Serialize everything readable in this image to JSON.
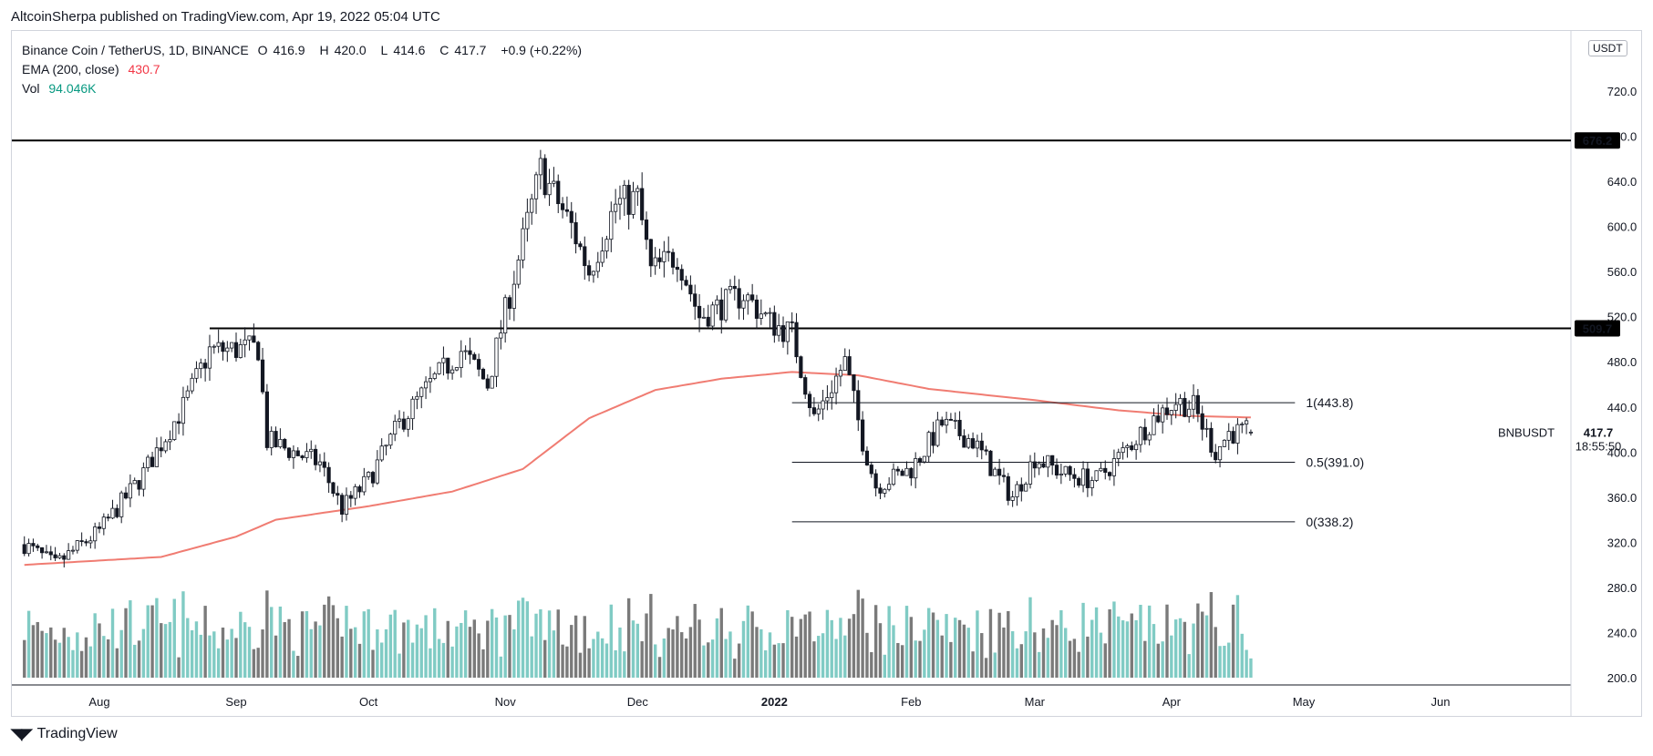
{
  "header": {
    "publisher": "AltcoinSherpa published on TradingView.com, Apr 19, 2022 05:04 UTC"
  },
  "legend": {
    "symbol": "Binance Coin / TetherUS, 1D, BINANCE",
    "o_label": "O",
    "o_value": "416.9",
    "h_label": "H",
    "h_value": "420.0",
    "l_label": "L",
    "l_value": "414.6",
    "c_label": "C",
    "c_value": "417.7",
    "change": "+0.9 (+0.22%)",
    "ema_label": "EMA (200, close)",
    "ema_value": "430.7",
    "vol_label": "Vol",
    "vol_value": "94.046K"
  },
  "footer": {
    "brand": "TradingView"
  },
  "colors": {
    "up": "#26a69a",
    "down": "#131722",
    "vol_up": "#80cbc4",
    "vol_down": "#7a7a7a",
    "ema": "#f07c72",
    "grid": "#e0e3eb"
  },
  "chart_data": {
    "type": "candlestick",
    "symbol": "BNBUSDT",
    "currency": "USDT",
    "y_ticks": [
      "720.0",
      "680.0",
      "640.0",
      "600.0",
      "560.0",
      "520.0",
      "480.0",
      "440.0",
      "400.0",
      "360.0",
      "320.0",
      "280.0",
      "240.0",
      "200.0"
    ],
    "y_tick_values": [
      720,
      680,
      640,
      600,
      560,
      520,
      480,
      440,
      400,
      360,
      320,
      280,
      240,
      200
    ],
    "x_ticks": [
      "Aug",
      "Sep",
      "Oct",
      "Nov",
      "Dec",
      "2022",
      "Feb",
      "Mar",
      "Apr",
      "May",
      "Jun"
    ],
    "x_tick_dates": [
      "2021-08-01",
      "2021-09-01",
      "2021-10-01",
      "2021-11-01",
      "2021-12-01",
      "2022-01-01",
      "2022-02-01",
      "2022-03-01",
      "2022-04-01",
      "2022-05-01",
      "2022-06-01"
    ],
    "ylim": [
      192,
      730
    ],
    "xlim": [
      "2021-07-15",
      "2022-06-30"
    ],
    "horizontal_levels": [
      {
        "label": "676.2",
        "value": 676.2
      },
      {
        "label": "509.7",
        "value": 509.7
      }
    ],
    "fib_levels": [
      {
        "label": "1(443.8)",
        "value": 443.8
      },
      {
        "label": "0.5(391.0)",
        "value": 391.0
      },
      {
        "label": "0(338.2)",
        "value": 338.2
      }
    ],
    "last_price": {
      "label": "BNBUSDT",
      "value": "417.7",
      "countdown": "18:55:50"
    },
    "price_waypoints": [
      [
        "2021-07-15",
        318
      ],
      [
        "2021-07-22",
        300
      ],
      [
        "2021-08-01",
        330
      ],
      [
        "2021-08-10",
        375
      ],
      [
        "2021-08-20",
        440
      ],
      [
        "2021-08-26",
        490
      ],
      [
        "2021-09-06",
        492
      ],
      [
        "2021-09-08",
        410
      ],
      [
        "2021-09-20",
        390
      ],
      [
        "2021-09-25",
        350
      ],
      [
        "2021-10-01",
        375
      ],
      [
        "2021-10-08",
        425
      ],
      [
        "2021-10-15",
        460
      ],
      [
        "2021-10-22",
        490
      ],
      [
        "2021-10-28",
        460
      ],
      [
        "2021-11-02",
        540
      ],
      [
        "2021-11-09",
        650
      ],
      [
        "2021-11-16",
        600
      ],
      [
        "2021-11-20",
        560
      ],
      [
        "2021-11-26",
        620
      ],
      [
        "2021-12-01",
        625
      ],
      [
        "2021-12-04",
        560
      ],
      [
        "2021-12-10",
        575
      ],
      [
        "2021-12-15",
        520
      ],
      [
        "2021-12-25",
        540
      ],
      [
        "2021-12-31",
        515
      ],
      [
        "2022-01-05",
        505
      ],
      [
        "2022-01-10",
        430
      ],
      [
        "2022-01-17",
        480
      ],
      [
        "2022-01-21",
        410
      ],
      [
        "2022-01-24",
        370
      ],
      [
        "2022-02-01",
        385
      ],
      [
        "2022-02-08",
        425
      ],
      [
        "2022-02-15",
        410
      ],
      [
        "2022-02-22",
        370
      ],
      [
        "2022-02-24",
        360
      ],
      [
        "2022-03-01",
        395
      ],
      [
        "2022-03-08",
        380
      ],
      [
        "2022-03-15",
        375
      ],
      [
        "2022-03-20",
        395
      ],
      [
        "2022-03-28",
        430
      ],
      [
        "2022-04-02",
        445
      ],
      [
        "2022-04-06",
        440
      ],
      [
        "2022-04-11",
        400
      ],
      [
        "2022-04-14",
        417
      ],
      [
        "2022-04-19",
        417.7
      ]
    ],
    "ema_waypoints": [
      [
        "2021-07-15",
        300
      ],
      [
        "2021-08-15",
        307
      ],
      [
        "2021-09-01",
        325
      ],
      [
        "2021-09-10",
        340
      ],
      [
        "2021-10-01",
        352
      ],
      [
        "2021-10-20",
        365
      ],
      [
        "2021-11-05",
        385
      ],
      [
        "2021-11-20",
        430
      ],
      [
        "2021-12-05",
        455
      ],
      [
        "2021-12-20",
        465
      ],
      [
        "2022-01-05",
        471
      ],
      [
        "2022-01-20",
        468
      ],
      [
        "2022-02-05",
        456
      ],
      [
        "2022-03-01",
        446
      ],
      [
        "2022-03-20",
        437
      ],
      [
        "2022-04-05",
        432
      ],
      [
        "2022-04-19",
        430.7
      ]
    ],
    "volume_range": [
      0,
      340
    ]
  }
}
